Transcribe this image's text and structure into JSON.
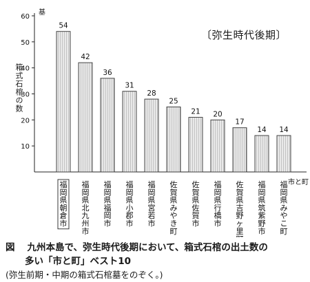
{
  "chart_data": {
    "type": "bar",
    "title": "",
    "period_label": "〔弥生時代後期〕",
    "ylabel": "箱式石棺の数",
    "yunit": "基",
    "ylim": [
      0,
      60
    ],
    "yticks": [
      10,
      20,
      30,
      40,
      50,
      60
    ],
    "xlabel": "市と町",
    "categories": [
      "福岡県朝倉市",
      "福岡県北九州市",
      "福岡県福岡市",
      "福岡県小郡市",
      "福岡県宮若市",
      "佐賀県みやき町",
      "佐賀県佐賀市",
      "福岡県行橋市",
      "佐賀県吉野ヶ里町",
      "福岡県筑紫野市",
      "福岡県みやこ町"
    ],
    "values": [
      54,
      42,
      36,
      31,
      28,
      25,
      21,
      20,
      17,
      14,
      14
    ],
    "value_labels": [
      "54",
      "42",
      "36",
      "31",
      "28",
      "25",
      "21",
      "20",
      "17",
      "14",
      "14"
    ],
    "highlighted_category": "福岡県朝倉市"
  },
  "caption": {
    "figure_label": "図",
    "line1": "九州本島で、弥生時代後期において、箱式石棺の出土数の",
    "line2": "多い「市と町」ベスト10",
    "note": "(弥生前期・中期の箱式石棺墓をのぞく。)"
  }
}
